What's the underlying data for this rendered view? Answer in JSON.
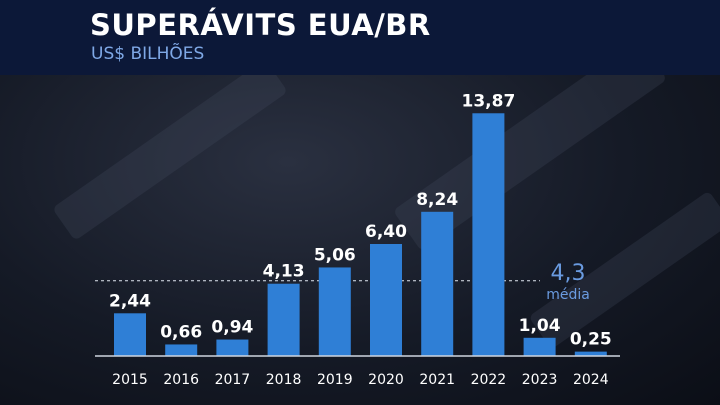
{
  "chart_data": {
    "type": "bar",
    "title": "SUPERÁVITS EUA/BR",
    "subtitle": "US$ BILHÕES",
    "categories": [
      "2015",
      "2016",
      "2017",
      "2018",
      "2019",
      "2020",
      "2021",
      "2022",
      "2023",
      "2024"
    ],
    "values": [
      2.44,
      0.66,
      0.94,
      4.13,
      5.06,
      6.4,
      8.24,
      13.87,
      1.04,
      0.25
    ],
    "data_labels": [
      "2,44",
      "0,66",
      "0,94",
      "4,13",
      "5,06",
      "6,40",
      "8,24",
      "13,87",
      "1,04",
      "0,25"
    ],
    "reference_line": {
      "value": 4.3,
      "label_value": "4,3",
      "label": "média"
    },
    "ylim": [
      0,
      14
    ],
    "grid": false,
    "bar_color": "#2f7fd6",
    "title_color": "#ffffff",
    "subtitle_color": "#7fa8e6",
    "reference_color": "#6a9be0"
  }
}
